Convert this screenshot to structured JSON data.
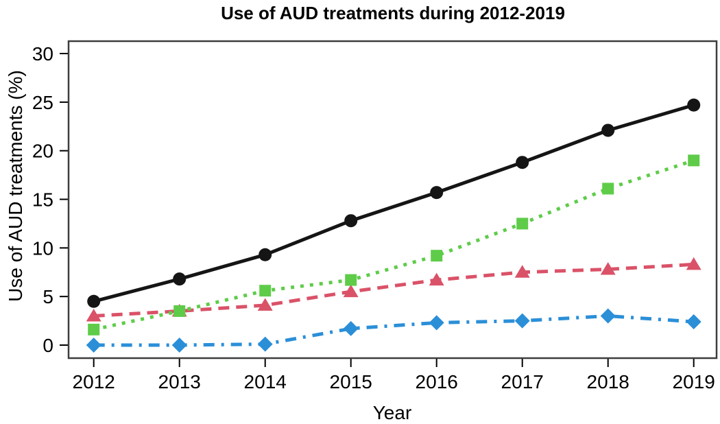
{
  "title": "Use of AUD treatments during 2012-2019",
  "chart_data": {
    "type": "line",
    "title": "Use of AUD treatments during 2012-2019",
    "xlabel": "Year",
    "ylabel": "Use of AUD treatments (%)",
    "categories": [
      "2012",
      "2013",
      "2014",
      "2015",
      "2016",
      "2017",
      "2018",
      "2019"
    ],
    "y_ticks": [
      0,
      5,
      10,
      15,
      20,
      25,
      30
    ],
    "ylim": [
      0,
      30
    ],
    "grid": false,
    "legend_position": "none",
    "series": [
      {
        "name": "black-solid-circle-series",
        "marker": "circle",
        "line_style": "solid",
        "color": "#151515",
        "values": [
          4.5,
          6.8,
          9.3,
          12.8,
          15.7,
          18.8,
          22.1,
          24.7
        ]
      },
      {
        "name": "green-dotted-square-series",
        "marker": "square",
        "line_style": "dotted",
        "color": "#5ecc49",
        "values": [
          1.6,
          3.5,
          5.6,
          6.7,
          9.2,
          12.5,
          16.1,
          19.0
        ]
      },
      {
        "name": "red-dashed-triangle-series",
        "marker": "triangle",
        "line_style": "dashed",
        "color": "#da5268",
        "values": [
          3.0,
          3.5,
          4.1,
          5.5,
          6.7,
          7.5,
          7.8,
          8.3
        ]
      },
      {
        "name": "blue-dashdot-diamond-series",
        "marker": "diamond",
        "line_style": "dashdot",
        "color": "#2b8fd8",
        "values": [
          0.0,
          0.0,
          0.1,
          1.7,
          2.3,
          2.5,
          3.0,
          2.4
        ]
      }
    ]
  }
}
